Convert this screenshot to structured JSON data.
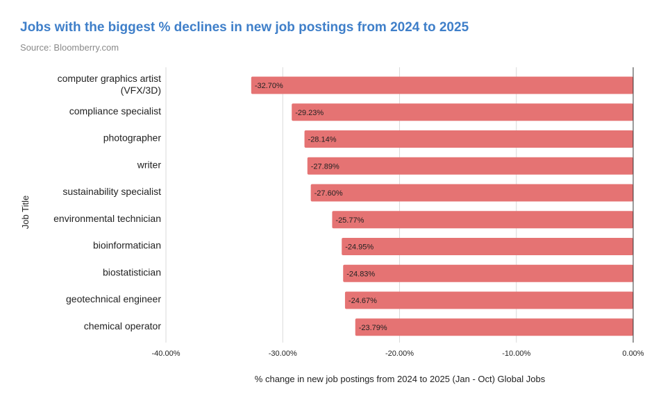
{
  "header": {
    "title": "Jobs with the biggest % declines in new job postings from 2024 to 2025",
    "source": "Source: Bloomberry.com"
  },
  "colors": {
    "title": "#3f7fc9",
    "bar": "#e57373",
    "grid": "#d9d9d9"
  },
  "chart_data": {
    "type": "bar",
    "orientation": "horizontal",
    "title": "Jobs with the biggest % declines in new job postings from 2024 to 2025",
    "xlabel": "% change in new job postings from 2024 to 2025 (Jan - Oct) Global Jobs",
    "ylabel": "Job Title",
    "xlim": [
      -40,
      0
    ],
    "xticks": [
      -40,
      -30,
      -20,
      -10,
      0
    ],
    "xtick_labels": [
      "-40.00%",
      "-30.00%",
      "-20.00%",
      "-10.00%",
      "0.00%"
    ],
    "grid": true,
    "categories": [
      [
        "computer graphics artist",
        "(VFX/3D)"
      ],
      [
        "compliance specialist"
      ],
      [
        "photographer"
      ],
      [
        "writer"
      ],
      [
        "sustainability specialist"
      ],
      [
        "environmental technician"
      ],
      [
        "bioinformatician"
      ],
      [
        "biostatistician"
      ],
      [
        "geotechnical engineer"
      ],
      [
        "chemical operator"
      ]
    ],
    "values": [
      -32.7,
      -29.23,
      -28.14,
      -27.89,
      -27.6,
      -25.77,
      -24.95,
      -24.83,
      -24.67,
      -23.79
    ],
    "data_labels": [
      "-32.70%",
      "-29.23%",
      "-28.14%",
      "-27.89%",
      "-27.60%",
      "-25.77%",
      "-24.95%",
      "-24.83%",
      "-24.67%",
      "-23.79%"
    ]
  }
}
